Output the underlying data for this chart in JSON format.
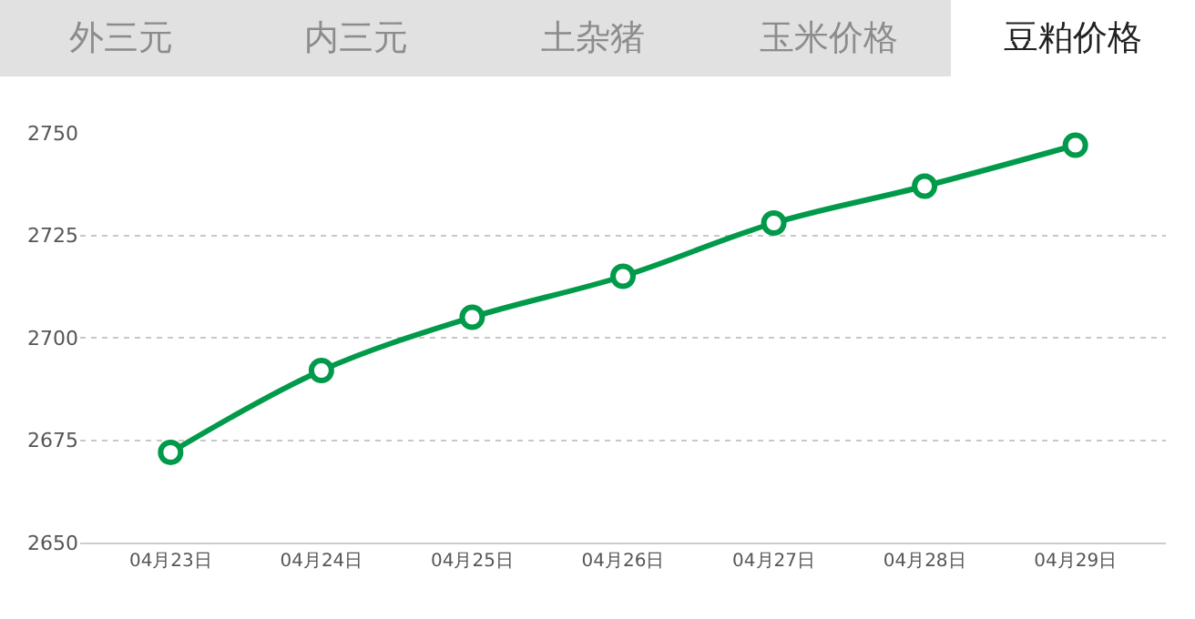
{
  "chart_data": {
    "type": "line",
    "title": "豆粕价格",
    "annotations": [
      "外三元",
      "内三元",
      "土杂猪",
      "玉米价格"
    ],
    "categories": [
      "04月23日",
      "04月24日",
      "04月25日",
      "04月26日",
      "04月27日",
      "04月28日",
      "04月29日"
    ],
    "series": [
      {
        "color": "#009a4a",
        "values": [
          2672,
          2692,
          2705,
          2715,
          2728,
          2737,
          2747
        ]
      }
    ],
    "ylim": [
      2650,
      2750
    ],
    "yticks": [
      2650,
      2675,
      2700,
      2725,
      2750
    ],
    "grid": "y",
    "marker": "circle",
    "line_style": "solid"
  }
}
